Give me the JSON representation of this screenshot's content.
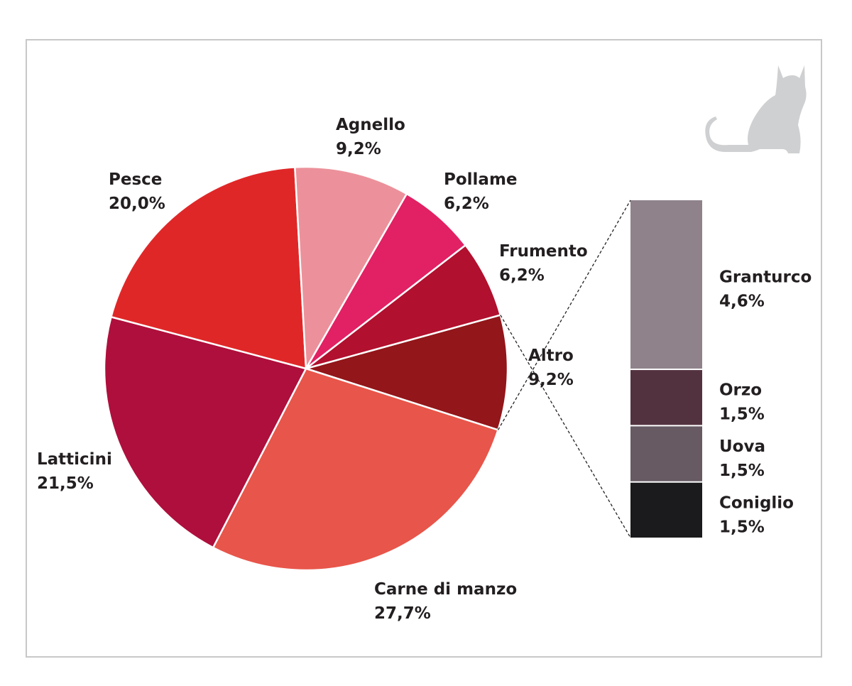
{
  "chart_data": {
    "type": "pie",
    "title": "",
    "slices": [
      {
        "label": "Altro",
        "value": 9.2,
        "value_label": "9,2%",
        "color": "#92161a"
      },
      {
        "label": "Carne di manzo",
        "value": 27.7,
        "value_label": "27,7%",
        "color": "#e8554a"
      },
      {
        "label": "Latticini",
        "value": 21.5,
        "value_label": "21,5%",
        "color": "#ae0f3c"
      },
      {
        "label": "Pesce",
        "value": 20.0,
        "value_label": "20,0%",
        "color": "#e02728"
      },
      {
        "label": "Agnello",
        "value": 9.2,
        "value_label": "9,2%",
        "color": "#ec919b"
      },
      {
        "label": "Pollame",
        "value": 6.2,
        "value_label": "6,2%",
        "color": "#e12163"
      },
      {
        "label": "Frumento",
        "value": 6.2,
        "value_label": "6,2%",
        "color": "#b1102e"
      }
    ],
    "breakdown": {
      "of": "Altro",
      "type": "stacked-bar",
      "segments": [
        {
          "label": "Granturco",
          "value": 4.6,
          "value_label": "4,6%",
          "color": "#8f828b"
        },
        {
          "label": "Orzo",
          "value": 1.5,
          "value_label": "1,5%",
          "color": "#533240"
        },
        {
          "label": "Uova",
          "value": 1.5,
          "value_label": "1,5%",
          "color": "#675a63"
        },
        {
          "label": "Coniglio",
          "value": 1.5,
          "value_label": "1,5%",
          "color": "#1b1a1c"
        }
      ]
    },
    "decorations": {
      "icon": "cat-silhouette-icon",
      "icon_color": "#cfd0d1",
      "frame_color": "#c8c8c8"
    }
  }
}
